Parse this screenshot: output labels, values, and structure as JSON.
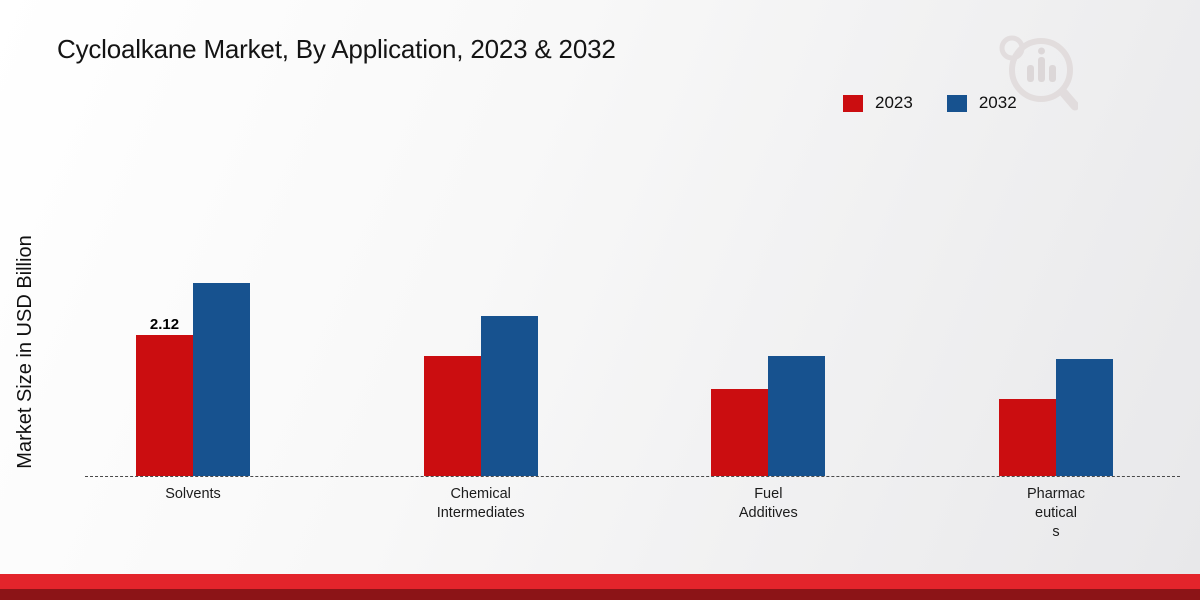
{
  "title": "Cycloalkane Market, By Application, 2023 & 2032",
  "y_axis_label": "Market Size in USD Billion",
  "legend": {
    "items": [
      {
        "label": "2023",
        "color": "#cb0d10"
      },
      {
        "label": "2032",
        "color": "#17528f"
      }
    ]
  },
  "chart_data": {
    "type": "bar",
    "title": "Cycloalkane Market, By Application, 2023 & 2032",
    "xlabel": "",
    "ylabel": "Market Size in USD Billion",
    "categories": [
      "Solvents",
      "Chemical Intermediates",
      "Fuel Additives",
      "Pharmaceuticals"
    ],
    "category_label_lines": [
      [
        "Solvents"
      ],
      [
        "Chemical",
        "Intermediates"
      ],
      [
        "Fuel",
        "Additives"
      ],
      [
        "Pharmac",
        "eutical",
        "s"
      ]
    ],
    "series": [
      {
        "name": "2023",
        "color": "#cb0d10",
        "values": [
          2.12,
          1.8,
          1.3,
          1.15
        ]
      },
      {
        "name": "2032",
        "color": "#17528f",
        "values": [
          2.9,
          2.4,
          1.8,
          1.75
        ]
      }
    ],
    "ylim": [
      0,
      3.3
    ],
    "grid": false,
    "legend_position": "top-right",
    "bar_value_labels": [
      {
        "series_index": 0,
        "category_index": 0,
        "text": "2.12"
      }
    ]
  }
}
